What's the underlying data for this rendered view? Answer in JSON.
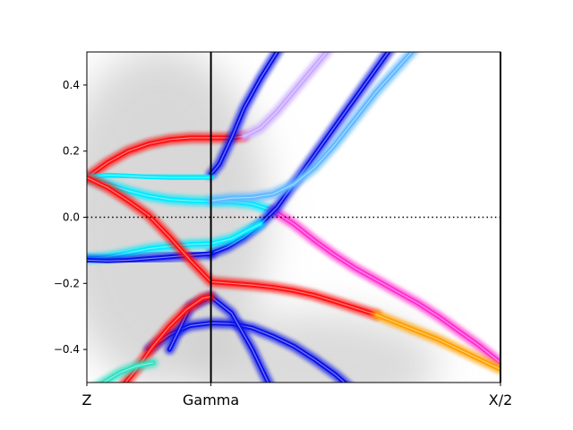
{
  "chart_data": {
    "type": "line",
    "subtype": "spectral-function band structure",
    "title": "",
    "xlabel": "",
    "ylabel": "",
    "x_ticks": [
      {
        "pos": 0.0,
        "label": "Z"
      },
      {
        "pos": 0.3,
        "label": "Gamma"
      },
      {
        "pos": 1.0,
        "label": "X/2"
      }
    ],
    "xlim": [
      0.0,
      1.0
    ],
    "ylim": [
      -0.5,
      0.5
    ],
    "y_ticks": [
      -0.4,
      -0.2,
      0.0,
      0.2,
      0.4
    ],
    "y_tick_labels": [
      "−0.4",
      "−0.2",
      "0.0",
      "0.2",
      "0.4"
    ],
    "fermi_level": 0.0,
    "fermi_line_style": "dotted",
    "vertical_lines": [
      0.3
    ],
    "grid": false,
    "legend": "none",
    "colors": {
      "background_haze": "#b8b8b8",
      "red": "#ff1010",
      "blue": "#0a12e8",
      "cyan": "#00eaff",
      "magenta": "#ff30d0",
      "yellow": "#ffff00",
      "orange": "#ffa000",
      "lightblue": "#60b8ff",
      "lavender": "#c8a8ff",
      "teal": "#30e0c0"
    },
    "series": [
      {
        "color": "red",
        "x": [
          0,
          0.05,
          0.1,
          0.15,
          0.2,
          0.25,
          0.3,
          0.35,
          0.38
        ],
        "y": [
          0.12,
          0.165,
          0.2,
          0.222,
          0.235,
          0.24,
          0.24,
          0.24,
          0.245
        ]
      },
      {
        "color": "lavender",
        "x": [
          0.38,
          0.42,
          0.46,
          0.5,
          0.54,
          0.58,
          0.62
        ],
        "y": [
          0.245,
          0.27,
          0.32,
          0.38,
          0.44,
          0.5,
          0.56
        ]
      },
      {
        "color": "blue",
        "x": [
          0.3,
          0.32,
          0.35,
          0.38,
          0.42,
          0.46,
          0.5
        ],
        "y": [
          0.13,
          0.16,
          0.24,
          0.33,
          0.42,
          0.5,
          0.58
        ]
      },
      {
        "color": "cyan",
        "x": [
          0,
          0.05,
          0.1,
          0.15,
          0.2,
          0.25,
          0.3
        ],
        "y": [
          0.12,
          0.128,
          0.125,
          0.122,
          0.12,
          0.12,
          0.12
        ]
      },
      {
        "color": "cyan",
        "x": [
          0,
          0.05,
          0.1,
          0.15,
          0.2,
          0.25,
          0.3,
          0.35,
          0.4,
          0.45
        ],
        "y": [
          0.12,
          0.1,
          0.08,
          0.064,
          0.054,
          0.05,
          0.048,
          0.047,
          0.04,
          0.02
        ]
      },
      {
        "color": "magenta",
        "x": [
          0.45,
          0.5,
          0.55,
          0.6,
          0.65,
          0.7,
          0.75,
          0.8,
          0.85,
          0.9,
          0.95,
          1.0
        ],
        "y": [
          0.02,
          -0.02,
          -0.07,
          -0.115,
          -0.155,
          -0.19,
          -0.225,
          -0.26,
          -0.3,
          -0.345,
          -0.39,
          -0.44
        ]
      },
      {
        "color": "blue",
        "x": [
          0.3,
          0.34,
          0.38,
          0.42,
          0.46,
          0.5,
          0.54,
          0.58,
          0.62,
          0.66,
          0.7,
          0.74
        ],
        "y": [
          -0.11,
          -0.09,
          -0.06,
          -0.02,
          0.03,
          0.1,
          0.17,
          0.24,
          0.31,
          0.38,
          0.45,
          0.52
        ]
      },
      {
        "color": "lightblue",
        "x": [
          0.3,
          0.35,
          0.4,
          0.45,
          0.5,
          0.55,
          0.6,
          0.65,
          0.7,
          0.75,
          0.8
        ],
        "y": [
          0.05,
          0.058,
          0.06,
          0.07,
          0.1,
          0.15,
          0.22,
          0.3,
          0.38,
          0.45,
          0.52
        ]
      },
      {
        "color": "cyan",
        "x": [
          0,
          0.05,
          0.1,
          0.15,
          0.2,
          0.25,
          0.3,
          0.35,
          0.38,
          0.42
        ],
        "y": [
          -0.125,
          -0.12,
          -0.108,
          -0.095,
          -0.088,
          -0.082,
          -0.08,
          -0.065,
          -0.045,
          -0.02
        ]
      },
      {
        "color": "blue",
        "x": [
          0,
          0.05,
          0.1,
          0.15,
          0.2,
          0.25,
          0.3
        ],
        "y": [
          -0.13,
          -0.132,
          -0.13,
          -0.125,
          -0.12,
          -0.115,
          -0.11
        ]
      },
      {
        "color": "red",
        "x": [
          0,
          0.05,
          0.1,
          0.15,
          0.2,
          0.25,
          0.3,
          0.35,
          0.4,
          0.45,
          0.5,
          0.55,
          0.6,
          0.65,
          0.7
        ],
        "y": [
          0.12,
          0.09,
          0.05,
          0.005,
          -0.06,
          -0.13,
          -0.195,
          -0.2,
          -0.205,
          -0.212,
          -0.222,
          -0.236,
          -0.255,
          -0.275,
          -0.295
        ]
      },
      {
        "color": "orange",
        "x": [
          0.7,
          0.75,
          0.8,
          0.85,
          0.9,
          0.95,
          1.0
        ],
        "y": [
          -0.295,
          -0.32,
          -0.345,
          -0.37,
          -0.4,
          -0.43,
          -0.46
        ]
      },
      {
        "color": "blue",
        "x": [
          0.15,
          0.2,
          0.25,
          0.3,
          0.35,
          0.4,
          0.45,
          0.5,
          0.55,
          0.6,
          0.65
        ],
        "y": [
          -0.4,
          -0.355,
          -0.328,
          -0.32,
          -0.322,
          -0.335,
          -0.36,
          -0.39,
          -0.43,
          -0.475,
          -0.53
        ]
      },
      {
        "color": "blue",
        "x": [
          0.2,
          0.25,
          0.3,
          0.35,
          0.4,
          0.45
        ],
        "y": [
          -0.4,
          -0.27,
          -0.24,
          -0.29,
          -0.4,
          -0.53
        ]
      },
      {
        "color": "red",
        "x": [
          0.08,
          0.12,
          0.16,
          0.2,
          0.24,
          0.28,
          0.3
        ],
        "y": [
          -0.52,
          -0.46,
          -0.39,
          -0.33,
          -0.28,
          -0.245,
          -0.24
        ]
      },
      {
        "color": "teal",
        "x": [
          0.0,
          0.04,
          0.08,
          0.12,
          0.16
        ],
        "y": [
          -0.53,
          -0.5,
          -0.47,
          -0.45,
          -0.44
        ]
      }
    ]
  }
}
